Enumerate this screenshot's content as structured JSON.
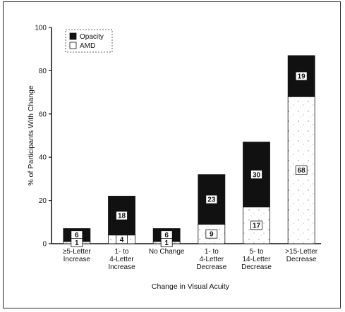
{
  "chart_data": {
    "type": "bar",
    "stacked": true,
    "categories": [
      [
        "≥5-Letter",
        "Increase"
      ],
      [
        "1- to",
        "4-Letter",
        "Increase"
      ],
      [
        "No Change"
      ],
      [
        "1- to",
        "4-Letter",
        "Decrease"
      ],
      [
        "5- to",
        "14-Letter",
        "Decrease"
      ],
      [
        ">15-Letter",
        "Decrease"
      ]
    ],
    "series": [
      {
        "name": "AMD",
        "values": [
          1,
          4,
          1,
          9,
          17,
          68
        ],
        "color": "#ffffff",
        "pattern": "speckled"
      },
      {
        "name": "Opacity",
        "values": [
          6,
          18,
          6,
          23,
          30,
          19
        ],
        "color": "#111111"
      }
    ],
    "xlabel": "Change in Visual Acuity",
    "ylabel": "% of Participants With Change",
    "ylim": [
      0,
      100
    ],
    "yticks": [
      0,
      20,
      40,
      60,
      80,
      100
    ],
    "grid": false,
    "legend_position": "top-left"
  }
}
